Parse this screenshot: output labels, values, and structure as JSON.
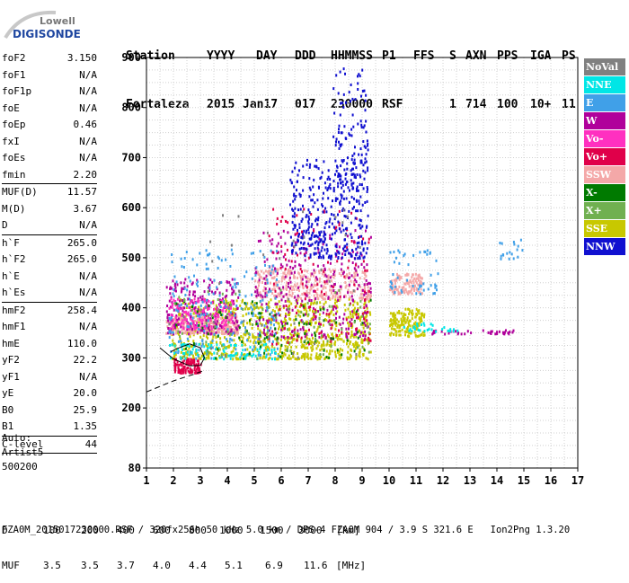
{
  "logo": {
    "line1": "Lowell",
    "line2": "DIGISONDE"
  },
  "header": {
    "labels": [
      "Station",
      "YYYY",
      "DAY",
      "DDD",
      "HHMMSS",
      "P1",
      "FFS",
      "S",
      "AXN",
      "PPS",
      "IGA",
      "PS"
    ],
    "values": [
      "Fortaleza",
      "2015",
      "Jan17",
      "017",
      "230000",
      "RSF",
      "1",
      "714",
      "100",
      "10+",
      "11"
    ]
  },
  "params": [
    {
      "name": "foF2",
      "value": "3.150"
    },
    {
      "name": "foF1",
      "value": "N/A"
    },
    {
      "name": "foF1p",
      "value": "N/A"
    },
    {
      "name": "foE",
      "value": "N/A"
    },
    {
      "name": "foEp",
      "value": "0.46"
    },
    {
      "name": "fxI",
      "value": "N/A"
    },
    {
      "name": "foEs",
      "value": "N/A"
    },
    {
      "name": "fmin",
      "value": "2.20",
      "sep": true
    },
    {
      "name": "MUF(D)",
      "value": "11.57"
    },
    {
      "name": "M(D)",
      "value": "3.67"
    },
    {
      "name": "D",
      "value": "N/A",
      "sep": true
    },
    {
      "name": "h`F",
      "value": "265.0"
    },
    {
      "name": "h`F2",
      "value": "265.0"
    },
    {
      "name": "h`E",
      "value": "N/A"
    },
    {
      "name": "h`Es",
      "value": "N/A",
      "sep": true
    },
    {
      "name": "hmF2",
      "value": "258.4"
    },
    {
      "name": "hmF1",
      "value": "N/A"
    },
    {
      "name": "hmE",
      "value": "110.0"
    },
    {
      "name": "yF2",
      "value": "22.2"
    },
    {
      "name": "yF1",
      "value": "N/A"
    },
    {
      "name": "yE",
      "value": "20.0"
    },
    {
      "name": "B0",
      "value": "25.9"
    },
    {
      "name": "B1",
      "value": "1.35",
      "sep": true
    },
    {
      "name": "C-level",
      "value": "44",
      "sep": true
    }
  ],
  "auto": {
    "line1": "Auto:",
    "line2": "Artist5",
    "line3": "500200"
  },
  "legend": [
    {
      "label": "NoVal",
      "color": "#808080"
    },
    {
      "label": "NNE",
      "color": "#00e6e6"
    },
    {
      "label": "E",
      "color": "#40a0e8"
    },
    {
      "label": "W",
      "color": "#b0009b"
    },
    {
      "label": "Vo-",
      "color": "#ff30c0"
    },
    {
      "label": "Vo+",
      "color": "#e0004a"
    },
    {
      "label": "SSW",
      "color": "#f4a8a8"
    },
    {
      "label": "X-",
      "color": "#007a00"
    },
    {
      "label": "X+",
      "color": "#70b050"
    },
    {
      "label": "SSE",
      "color": "#c8c800"
    },
    {
      "label": "NNW",
      "color": "#1010d0"
    }
  ],
  "muf_table": {
    "d_label": "D",
    "d_values": [
      "100",
      "200",
      "400",
      "600",
      "800",
      "1000",
      "1500",
      "3000"
    ],
    "d_unit": "[km]",
    "muf_label": "MUF",
    "muf_values": [
      "3.5",
      "3.5",
      "3.7",
      "4.0",
      "4.4",
      "5.1",
      "6.9",
      "11.6"
    ],
    "muf_unit": "[MHz]"
  },
  "footer": "FZA0M_2015017230000.RSF / 320fx256h 50 kHz 5.0 km / DPS-4 FZA0M 904 / 3.9 S 321.6 E   Ion2Png 1.3.20",
  "chart_data": {
    "type": "scatter",
    "title": "",
    "xlabel": "",
    "ylabel": "",
    "xlim": [
      1,
      17
    ],
    "ylim": [
      80,
      900
    ],
    "x_ticks": [
      "1",
      "2",
      "3",
      "4",
      "5",
      "6",
      "7",
      "8",
      "9",
      "10",
      "11",
      "12",
      "13",
      "14",
      "15",
      "16",
      "17"
    ],
    "y_ticks": [
      {
        "value": 80,
        "label": "80"
      },
      {
        "value": 200,
        "label": "200"
      },
      {
        "value": 300,
        "label": "300"
      },
      {
        "value": 400,
        "label": "400"
      },
      {
        "value": 500,
        "label": "500"
      },
      {
        "value": 600,
        "label": "600"
      },
      {
        "value": 700,
        "label": "700"
      },
      {
        "value": 800,
        "label": "800"
      },
      {
        "value": 900,
        "label": "900"
      }
    ],
    "grid": true,
    "clusters": [
      {
        "name": "SSE",
        "color": "#c8c800",
        "x": [
          1.9,
          9.3
        ],
        "y": [
          300,
          420
        ],
        "n": 900
      },
      {
        "name": "SSE",
        "color": "#c8c800",
        "x": [
          10.0,
          11.3
        ],
        "y": [
          345,
          400
        ],
        "n": 160
      },
      {
        "name": "SSW",
        "color": "#f4a8a8",
        "x": [
          1.7,
          4.4
        ],
        "y": [
          350,
          385
        ],
        "n": 260
      },
      {
        "name": "SSW",
        "color": "#f4a8a8",
        "x": [
          5.0,
          9.3
        ],
        "y": [
          420,
          480
        ],
        "n": 320
      },
      {
        "name": "SSW",
        "color": "#f4a8a8",
        "x": [
          10.0,
          11.2
        ],
        "y": [
          430,
          470
        ],
        "n": 120
      },
      {
        "name": "W",
        "color": "#b0009b",
        "x": [
          1.7,
          4.4
        ],
        "y": [
          350,
          460
        ],
        "n": 220
      },
      {
        "name": "W",
        "color": "#b0009b",
        "x": [
          5.0,
          9.3
        ],
        "y": [
          340,
          560
        ],
        "n": 320
      },
      {
        "name": "W",
        "color": "#b0009b",
        "x": [
          11.5,
          14.7
        ],
        "y": [
          350,
          358
        ],
        "n": 40
      },
      {
        "name": "Vo-",
        "color": "#ff30c0",
        "x": [
          1.8,
          4.2
        ],
        "y": [
          360,
          420
        ],
        "n": 160
      },
      {
        "name": "Vo+",
        "color": "#e0004a",
        "x": [
          2.0,
          3.0
        ],
        "y": [
          272,
          300
        ],
        "n": 110
      },
      {
        "name": "Vo+",
        "color": "#e0004a",
        "x": [
          5.5,
          9.3
        ],
        "y": [
          330,
          600
        ],
        "n": 140
      },
      {
        "name": "E",
        "color": "#40a0e8",
        "x": [
          1.8,
          5.9
        ],
        "y": [
          300,
          520
        ],
        "n": 220
      },
      {
        "name": "E",
        "color": "#40a0e8",
        "x": [
          10.0,
          11.8
        ],
        "y": [
          430,
          520
        ],
        "n": 50
      },
      {
        "name": "E",
        "color": "#40a0e8",
        "x": [
          14.0,
          15.0
        ],
        "y": [
          500,
          540
        ],
        "n": 18
      },
      {
        "name": "NNE",
        "color": "#00e6e6",
        "x": [
          1.8,
          6.0
        ],
        "y": [
          300,
          330
        ],
        "n": 90
      },
      {
        "name": "NNE",
        "color": "#00e6e6",
        "x": [
          10.5,
          12.6
        ],
        "y": [
          355,
          372
        ],
        "n": 30
      },
      {
        "name": "NNW",
        "color": "#1010d0",
        "x": [
          6.3,
          9.2
        ],
        "y": [
          500,
          700
        ],
        "n": 360
      },
      {
        "name": "NNW",
        "color": "#1010d0",
        "x": [
          7.9,
          9.2
        ],
        "y": [
          640,
          880
        ],
        "n": 120
      },
      {
        "name": "X-",
        "color": "#007a00",
        "x": [
          2.0,
          9.3
        ],
        "y": [
          300,
          420
        ],
        "n": 90
      },
      {
        "name": "X+",
        "color": "#70b050",
        "x": [
          2.0,
          9.3
        ],
        "y": [
          300,
          440
        ],
        "n": 90
      },
      {
        "name": "NoVal",
        "color": "#808080",
        "x": [
          1.8,
          9.3
        ],
        "y": [
          300,
          600
        ],
        "n": 40
      }
    ],
    "trace_lines": [
      {
        "style": "solid",
        "x": [
          1.5,
          2.0,
          2.6,
          3.0,
          3.15,
          3.0,
          2.6,
          2.1,
          1.9
        ],
        "y": [
          320,
          298,
          284,
          285,
          300,
          320,
          328,
          318,
          312
        ]
      },
      {
        "style": "dashed",
        "x": [
          1.0,
          2.0,
          2.8,
          3.15
        ],
        "y": [
          232,
          254,
          268,
          275
        ]
      }
    ]
  }
}
